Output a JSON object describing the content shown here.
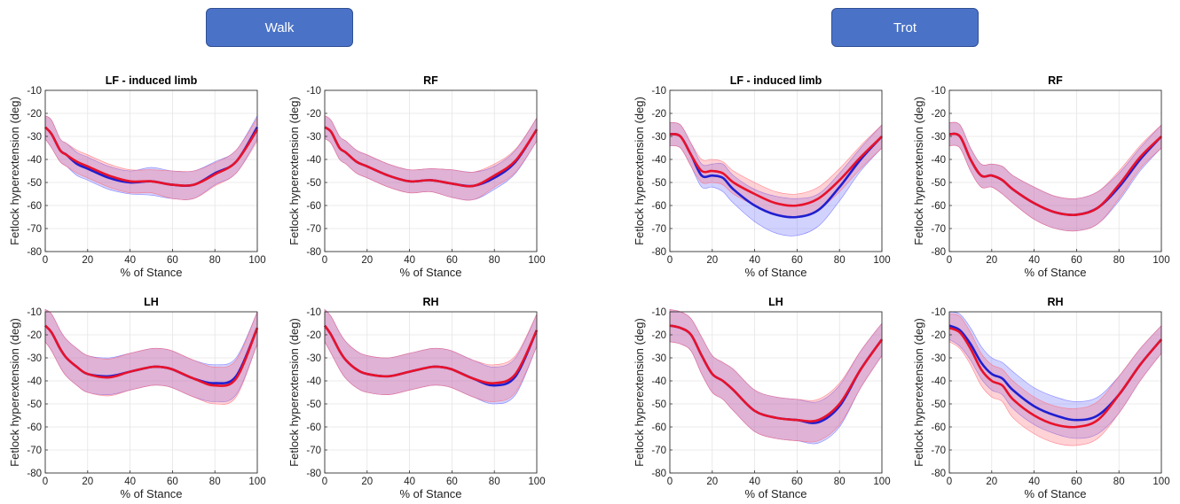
{
  "headers": {
    "walk": "Walk",
    "trot": "Trot"
  },
  "colors": {
    "series1": "#1f1fd0",
    "series2": "#e8122a",
    "band1": "#6b6bff",
    "band2": "#ff6b78",
    "header_box": "#4a73c8"
  },
  "chart_data": [
    {
      "type": "line",
      "gait": "Walk",
      "title": "LF - induced limb",
      "xlabel": "% of Stance",
      "ylabel": "Fetlock hyperextension (deg)",
      "xlim": [
        0,
        100
      ],
      "ylim": [
        -80,
        -10
      ],
      "xticks": [
        0,
        20,
        40,
        60,
        80,
        100
      ],
      "yticks": [
        -80,
        -70,
        -60,
        -50,
        -40,
        -30,
        -20,
        -10
      ],
      "grid": true,
      "x": [
        0,
        3,
        7,
        10,
        15,
        20,
        30,
        40,
        50,
        60,
        70,
        80,
        90,
        100
      ],
      "series": [
        {
          "color": "blue",
          "values": [
            -26,
            -29,
            -36,
            -38,
            -42,
            -44,
            -48,
            -50,
            -49.5,
            -51,
            -51,
            -46,
            -41,
            -26
          ],
          "band_halfwidth": [
            5,
            6,
            5,
            5,
            5,
            5,
            5,
            5,
            6,
            6,
            6,
            5,
            5,
            5
          ]
        },
        {
          "color": "red",
          "values": [
            -26,
            -29,
            -36,
            -38,
            -41,
            -43,
            -47,
            -49.5,
            -49.5,
            -51,
            -51,
            -46.5,
            -41,
            -27
          ],
          "band_halfwidth": [
            5,
            6,
            5,
            5,
            5,
            5,
            5,
            5,
            5,
            6,
            6,
            5,
            5,
            5
          ]
        }
      ]
    },
    {
      "type": "line",
      "gait": "Walk",
      "title": "RF",
      "xlabel": "% of Stance",
      "ylabel": "Fetlock hyperextension (deg)",
      "xlim": [
        0,
        100
      ],
      "ylim": [
        -80,
        -10
      ],
      "xticks": [
        0,
        20,
        40,
        60,
        80,
        100
      ],
      "yticks": [
        -80,
        -70,
        -60,
        -50,
        -40,
        -30,
        -20,
        -10
      ],
      "grid": true,
      "x": [
        0,
        3,
        7,
        10,
        15,
        20,
        30,
        40,
        50,
        60,
        70,
        80,
        90,
        100
      ],
      "series": [
        {
          "color": "blue",
          "values": [
            -26,
            -28,
            -35,
            -37,
            -41,
            -43,
            -47,
            -49.5,
            -49,
            -50.5,
            -51.5,
            -48,
            -41,
            -27
          ],
          "band_halfwidth": [
            5,
            5,
            5,
            5,
            5,
            5,
            5,
            5,
            5,
            6,
            6,
            5,
            5,
            5
          ]
        },
        {
          "color": "red",
          "values": [
            -26,
            -28,
            -35,
            -37,
            -41,
            -43,
            -47,
            -49.5,
            -49,
            -50.5,
            -51.5,
            -47,
            -40.5,
            -27
          ],
          "band_halfwidth": [
            5,
            5,
            5,
            5,
            5,
            5,
            5,
            5,
            5,
            6,
            6,
            5,
            5,
            5
          ]
        }
      ]
    },
    {
      "type": "line",
      "gait": "Trot",
      "title": "LF - induced limb",
      "xlabel": "% of Stance",
      "ylabel": "Fetlock hyperextension (deg)",
      "xlim": [
        0,
        100
      ],
      "ylim": [
        -80,
        -10
      ],
      "xticks": [
        0,
        20,
        40,
        60,
        80,
        100
      ],
      "yticks": [
        -80,
        -70,
        -60,
        -50,
        -40,
        -30,
        -20,
        -10
      ],
      "grid": true,
      "x": [
        0,
        5,
        10,
        15,
        20,
        25,
        30,
        40,
        50,
        60,
        70,
        80,
        90,
        100
      ],
      "series": [
        {
          "color": "blue",
          "values": [
            -29,
            -30,
            -38,
            -47,
            -47,
            -48,
            -53,
            -60,
            -64,
            -65,
            -62,
            -52,
            -40,
            -30
          ],
          "band_halfwidth": [
            5,
            5,
            5,
            5,
            5,
            6,
            6,
            7,
            8,
            8,
            7,
            6,
            5,
            5
          ]
        },
        {
          "color": "red",
          "values": [
            -29,
            -30,
            -38,
            -45,
            -45,
            -46,
            -50,
            -55,
            -59,
            -60,
            -57,
            -49,
            -39,
            -30
          ],
          "band_halfwidth": [
            5,
            5,
            5,
            5,
            5,
            5,
            5,
            5,
            5,
            5,
            5,
            5,
            5,
            5
          ]
        }
      ]
    },
    {
      "type": "line",
      "gait": "Trot",
      "title": "RF",
      "xlabel": "% of Stance",
      "ylabel": "Fetlock hyperextension (deg)",
      "xlim": [
        0,
        100
      ],
      "ylim": [
        -80,
        -10
      ],
      "xticks": [
        0,
        20,
        40,
        60,
        80,
        100
      ],
      "yticks": [
        -80,
        -70,
        -60,
        -50,
        -40,
        -30,
        -20,
        -10
      ],
      "grid": true,
      "x": [
        0,
        5,
        10,
        15,
        20,
        25,
        30,
        40,
        50,
        60,
        70,
        80,
        90,
        100
      ],
      "series": [
        {
          "color": "blue",
          "values": [
            -29,
            -30,
            -40,
            -47,
            -47,
            -49,
            -53,
            -59,
            -63,
            -64,
            -61,
            -52,
            -40,
            -30
          ],
          "band_halfwidth": [
            5,
            5,
            5,
            5,
            5,
            6,
            6,
            7,
            7,
            7,
            7,
            6,
            5,
            5
          ]
        },
        {
          "color": "red",
          "values": [
            -29,
            -30,
            -40,
            -47,
            -47,
            -49,
            -53,
            -59,
            -63,
            -64,
            -61,
            -51,
            -39,
            -30
          ],
          "band_halfwidth": [
            5,
            5,
            5,
            5,
            5,
            6,
            6,
            7,
            7,
            7,
            7,
            6,
            5,
            5
          ]
        }
      ]
    },
    {
      "type": "line",
      "gait": "Walk",
      "title": "LH",
      "xlabel": "% of Stance",
      "ylabel": "Fetlock hyperextension (deg)",
      "xlim": [
        0,
        100
      ],
      "ylim": [
        -80,
        -10
      ],
      "xticks": [
        0,
        20,
        40,
        60,
        80,
        100
      ],
      "yticks": [
        -80,
        -70,
        -60,
        -50,
        -40,
        -30,
        -20,
        -10
      ],
      "grid": true,
      "x": [
        0,
        3,
        7,
        10,
        15,
        20,
        30,
        40,
        50,
        55,
        60,
        70,
        80,
        90,
        100
      ],
      "series": [
        {
          "color": "blue",
          "values": [
            -16,
            -19,
            -26,
            -30,
            -34,
            -37,
            -38,
            -36,
            -34,
            -34,
            -35,
            -39,
            -41,
            -38,
            -17
          ],
          "band_halfwidth": [
            7,
            8,
            8,
            8,
            8,
            8,
            8,
            8,
            8,
            8,
            8,
            8,
            8,
            8,
            7
          ]
        },
        {
          "color": "red",
          "values": [
            -16,
            -19,
            -26,
            -30,
            -34,
            -37,
            -38.5,
            -36,
            -34,
            -34,
            -35,
            -39,
            -42,
            -39,
            -17
          ],
          "band_halfwidth": [
            7,
            8,
            8,
            8,
            8,
            8,
            8,
            8,
            8,
            8,
            8,
            8,
            8,
            8,
            7
          ]
        }
      ]
    },
    {
      "type": "line",
      "gait": "Walk",
      "title": "RH",
      "xlabel": "% of Stance",
      "ylabel": "Fetlock hyperextension (deg)",
      "xlim": [
        0,
        100
      ],
      "ylim": [
        -80,
        -10
      ],
      "xticks": [
        0,
        20,
        40,
        60,
        80,
        100
      ],
      "yticks": [
        -80,
        -70,
        -60,
        -50,
        -40,
        -30,
        -20,
        -10
      ],
      "grid": true,
      "x": [
        0,
        3,
        7,
        10,
        15,
        20,
        30,
        40,
        50,
        55,
        60,
        70,
        80,
        90,
        100
      ],
      "series": [
        {
          "color": "blue",
          "values": [
            -16,
            -20,
            -27,
            -31,
            -35,
            -37,
            -38,
            -36,
            -34,
            -34,
            -35,
            -39,
            -42,
            -38,
            -18
          ],
          "band_halfwidth": [
            7,
            8,
            8,
            8,
            8,
            8,
            8,
            8,
            8,
            8,
            8,
            8,
            8,
            8,
            7
          ]
        },
        {
          "color": "red",
          "values": [
            -16,
            -20,
            -27,
            -31,
            -35,
            -37,
            -38,
            -36,
            -34,
            -34,
            -35,
            -39,
            -41,
            -37,
            -18
          ],
          "band_halfwidth": [
            7,
            8,
            8,
            8,
            8,
            8,
            8,
            8,
            8,
            8,
            8,
            8,
            8,
            8,
            7
          ]
        }
      ]
    },
    {
      "type": "line",
      "gait": "Trot",
      "title": "LH",
      "xlabel": "% of Stance",
      "ylabel": "Fetlock hyperextension (deg)",
      "xlim": [
        0,
        100
      ],
      "ylim": [
        -80,
        -10
      ],
      "xticks": [
        0,
        20,
        40,
        60,
        80,
        100
      ],
      "yticks": [
        -80,
        -70,
        -60,
        -50,
        -40,
        -30,
        -20,
        -10
      ],
      "grid": true,
      "x": [
        0,
        5,
        10,
        15,
        20,
        25,
        30,
        40,
        50,
        60,
        70,
        80,
        90,
        100
      ],
      "series": [
        {
          "color": "blue",
          "values": [
            -16,
            -17,
            -20,
            -29,
            -37,
            -40,
            -44,
            -53,
            -56,
            -57,
            -58,
            -51,
            -35,
            -22
          ],
          "band_halfwidth": [
            7,
            7,
            7,
            8,
            8,
            8,
            9,
            9,
            9,
            9,
            9,
            9,
            8,
            7
          ]
        },
        {
          "color": "red",
          "values": [
            -16,
            -17,
            -20,
            -29,
            -37,
            -40,
            -44,
            -53,
            -56,
            -57,
            -57,
            -50,
            -35,
            -22
          ],
          "band_halfwidth": [
            7,
            7,
            7,
            8,
            8,
            8,
            9,
            9,
            9,
            9,
            9,
            9,
            8,
            7
          ]
        }
      ]
    },
    {
      "type": "line",
      "gait": "Trot",
      "title": "RH",
      "xlabel": "% of Stance",
      "ylabel": "Fetlock hyperextension (deg)",
      "xlim": [
        0,
        100
      ],
      "ylim": [
        -80,
        -10
      ],
      "xticks": [
        0,
        20,
        40,
        60,
        80,
        100
      ],
      "yticks": [
        -80,
        -70,
        -60,
        -50,
        -40,
        -30,
        -20,
        -10
      ],
      "grid": true,
      "x": [
        0,
        5,
        10,
        15,
        20,
        25,
        30,
        40,
        50,
        60,
        70,
        80,
        90,
        100
      ],
      "series": [
        {
          "color": "blue",
          "values": [
            -16,
            -18,
            -24,
            -32,
            -37,
            -39,
            -44,
            -51,
            -55,
            -57,
            -55,
            -46,
            -33,
            -22
          ],
          "band_halfwidth": [
            6,
            7,
            7,
            7,
            7,
            7,
            8,
            8,
            8,
            8,
            8,
            8,
            7,
            6
          ]
        },
        {
          "color": "red",
          "values": [
            -17,
            -19,
            -26,
            -35,
            -40,
            -42,
            -48,
            -55,
            -59,
            -60,
            -57,
            -46,
            -33,
            -22
          ],
          "band_halfwidth": [
            6,
            7,
            7,
            7,
            7,
            7,
            8,
            8,
            8,
            8,
            8,
            8,
            7,
            6
          ]
        }
      ]
    }
  ]
}
